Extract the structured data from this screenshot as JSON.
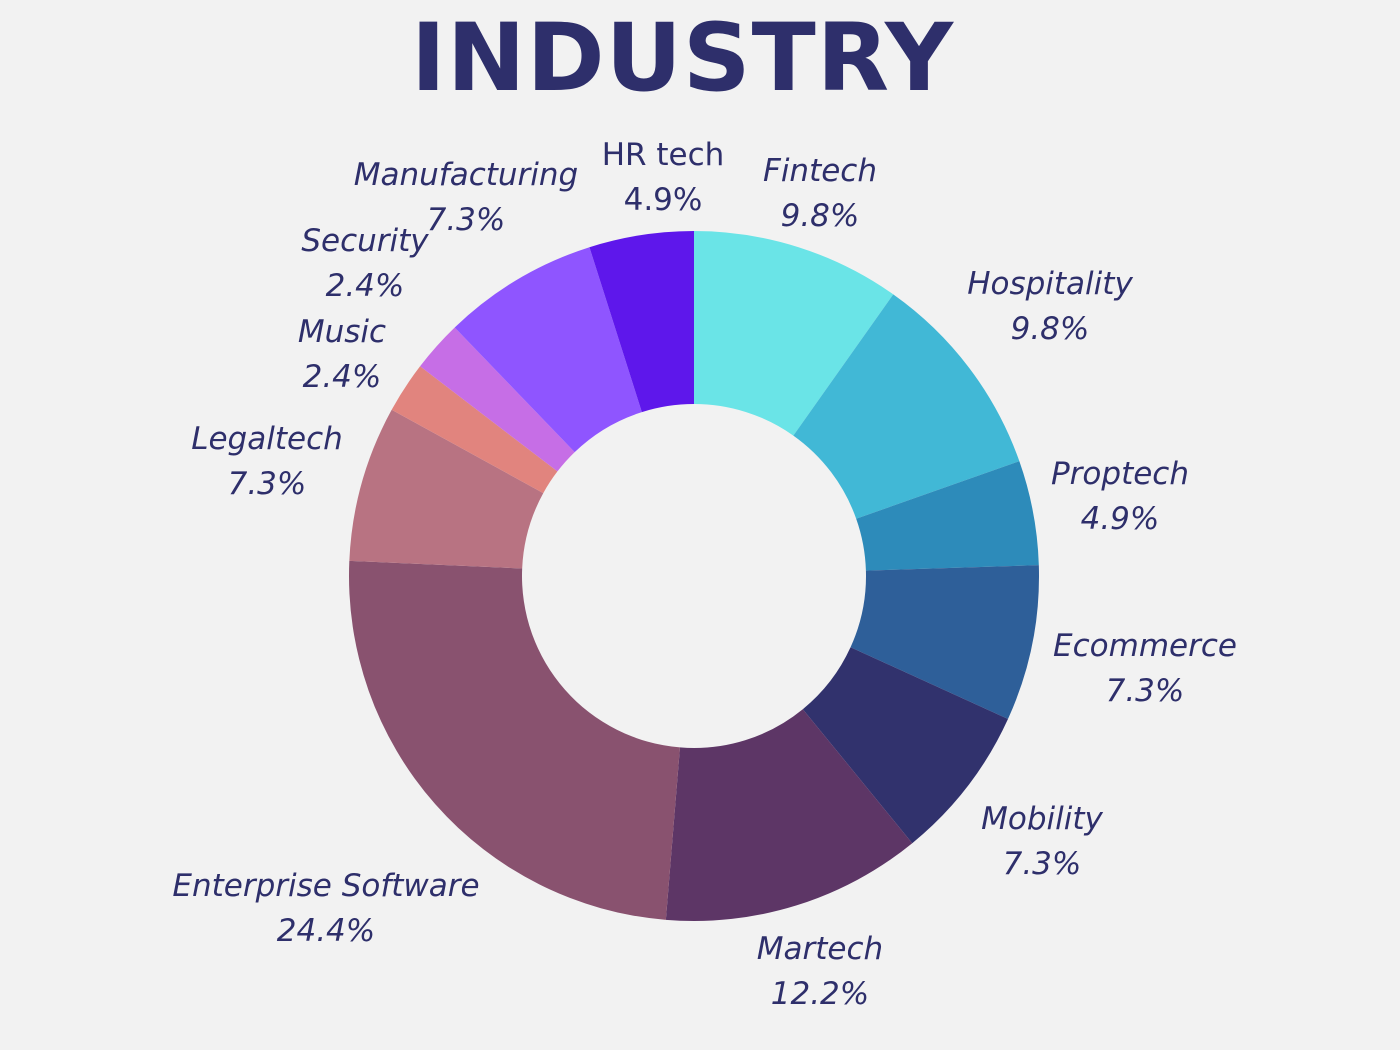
{
  "chart_data": {
    "type": "pie",
    "variant": "donut",
    "title": "INDUSTRY",
    "legend": "none",
    "slices": [
      {
        "label": "Fintech",
        "value": 9.8,
        "value_label": "9.8%",
        "color": "#6ae4e7",
        "italic": true
      },
      {
        "label": "Hospitality",
        "value": 9.8,
        "value_label": "9.8%",
        "color": "#41b8d6",
        "italic": true
      },
      {
        "label": "Proptech",
        "value": 4.9,
        "value_label": "4.9%",
        "color": "#2d8bba",
        "italic": true
      },
      {
        "label": "Ecommerce",
        "value": 7.3,
        "value_label": "7.3%",
        "color": "#2e5f99",
        "italic": true
      },
      {
        "label": "Mobility",
        "value": 7.3,
        "value_label": "7.3%",
        "color": "#31326d",
        "italic": true
      },
      {
        "label": "Martech",
        "value": 12.2,
        "value_label": "12.2%",
        "color": "#5d3666",
        "italic": true
      },
      {
        "label": "Enterprise Software",
        "value": 24.4,
        "value_label": "24.4%",
        "color": "#89526f",
        "italic": true
      },
      {
        "label": "Legaltech",
        "value": 7.3,
        "value_label": "7.3%",
        "color": "#b87382",
        "italic": true
      },
      {
        "label": "Music",
        "value": 2.4,
        "value_label": "2.4%",
        "color": "#e1847e",
        "italic": true
      },
      {
        "label": "Security",
        "value": 2.4,
        "value_label": "2.4%",
        "color": "#c66ee6",
        "italic": true
      },
      {
        "label": "Manufacturing",
        "value": 7.3,
        "value_label": "7.3%",
        "color": "#8f55ff",
        "italic": true
      },
      {
        "label": "HR tech",
        "value": 4.9,
        "value_label": "4.9%",
        "color": "#5e17eb",
        "italic": false
      }
    ]
  }
}
